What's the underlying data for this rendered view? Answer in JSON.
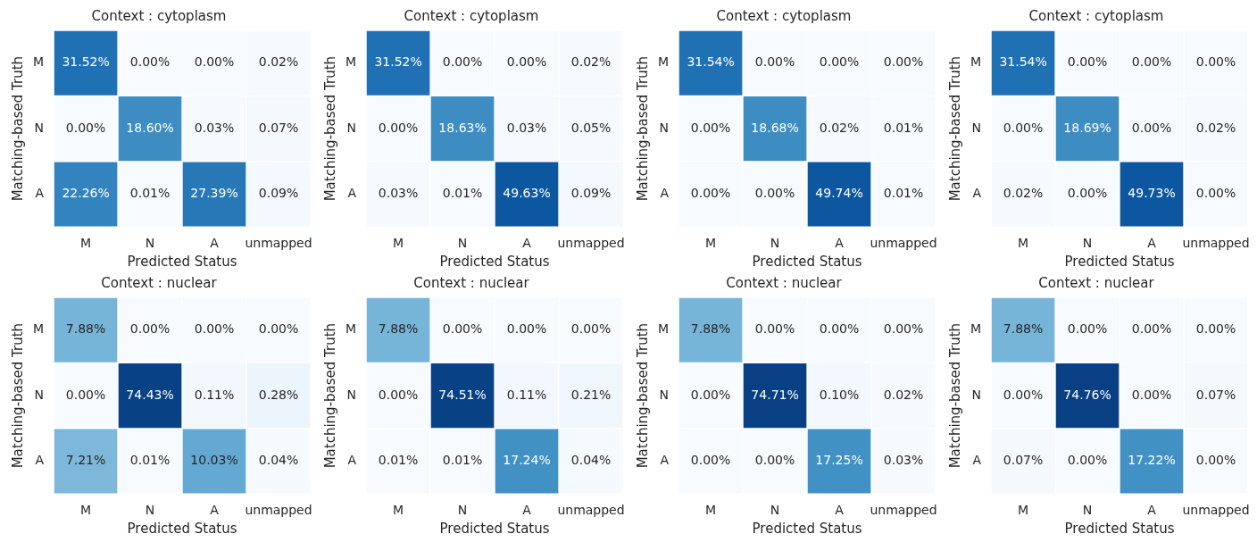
{
  "chart_data": [
    {
      "type": "heatmap",
      "title": "Context : cytoplasm",
      "xlabel": "Predicted Status",
      "ylabel": "Matching-based Truth",
      "categories": [
        "M",
        "N",
        "A",
        "unmapped"
      ],
      "y_categories": [
        "M",
        "N",
        "A"
      ],
      "cells": [
        [
          31.52,
          0.0,
          0.0,
          0.02
        ],
        [
          0.0,
          18.6,
          0.03,
          0.07
        ],
        [
          22.26,
          0.01,
          27.39,
          0.09
        ]
      ],
      "cell_labels": [
        [
          "31.52%",
          "0.00%",
          "0.00%",
          "0.02%"
        ],
        [
          "0.00%",
          "18.60%",
          "0.03%",
          "0.07%"
        ],
        [
          "22.26%",
          "0.01%",
          "27.39%",
          "0.09%"
        ]
      ]
    },
    {
      "type": "heatmap",
      "title": "Context : cytoplasm",
      "xlabel": "Predicted Status",
      "ylabel": "Matching-based Truth",
      "categories": [
        "M",
        "N",
        "A",
        "unmapped"
      ],
      "y_categories": [
        "M",
        "N",
        "A"
      ],
      "cells": [
        [
          31.52,
          0.0,
          0.0,
          0.02
        ],
        [
          0.0,
          18.63,
          0.03,
          0.05
        ],
        [
          0.03,
          0.01,
          49.63,
          0.09
        ]
      ],
      "cell_labels": [
        [
          "31.52%",
          "0.00%",
          "0.00%",
          "0.02%"
        ],
        [
          "0.00%",
          "18.63%",
          "0.03%",
          "0.05%"
        ],
        [
          "0.03%",
          "0.01%",
          "49.63%",
          "0.09%"
        ]
      ]
    },
    {
      "type": "heatmap",
      "title": "Context : cytoplasm",
      "xlabel": "Predicted Status",
      "ylabel": "Matching-based Truth",
      "categories": [
        "M",
        "N",
        "A",
        "unmapped"
      ],
      "y_categories": [
        "M",
        "N",
        "A"
      ],
      "cells": [
        [
          31.54,
          0.0,
          0.0,
          0.0
        ],
        [
          0.0,
          18.68,
          0.02,
          0.01
        ],
        [
          0.0,
          0.0,
          49.74,
          0.01
        ]
      ],
      "cell_labels": [
        [
          "31.54%",
          "0.00%",
          "0.00%",
          "0.00%"
        ],
        [
          "0.00%",
          "18.68%",
          "0.02%",
          "0.01%"
        ],
        [
          "0.00%",
          "0.00%",
          "49.74%",
          "0.01%"
        ]
      ]
    },
    {
      "type": "heatmap",
      "title": "Context : cytoplasm",
      "xlabel": "Predicted Status",
      "ylabel": "Matching-based Truth",
      "categories": [
        "M",
        "N",
        "A",
        "unmapped"
      ],
      "y_categories": [
        "M",
        "N",
        "A"
      ],
      "cells": [
        [
          31.54,
          0.0,
          0.0,
          0.0
        ],
        [
          0.0,
          18.69,
          0.0,
          0.02
        ],
        [
          0.02,
          0.0,
          49.73,
          0.0
        ]
      ],
      "cell_labels": [
        [
          "31.54%",
          "0.00%",
          "0.00%",
          "0.00%"
        ],
        [
          "0.00%",
          "18.69%",
          "0.00%",
          "0.02%"
        ],
        [
          "0.02%",
          "0.00%",
          "49.73%",
          "0.00%"
        ]
      ]
    },
    {
      "type": "heatmap",
      "title": "Context : nuclear",
      "xlabel": "Predicted Status",
      "ylabel": "Matching-based Truth",
      "categories": [
        "M",
        "N",
        "A",
        "unmapped"
      ],
      "y_categories": [
        "M",
        "N",
        "A"
      ],
      "cells": [
        [
          7.88,
          0.0,
          0.0,
          0.0
        ],
        [
          0.0,
          74.43,
          0.11,
          0.28
        ],
        [
          7.21,
          0.01,
          10.03,
          0.04
        ]
      ],
      "cell_labels": [
        [
          "7.88%",
          "0.00%",
          "0.00%",
          "0.00%"
        ],
        [
          "0.00%",
          "74.43%",
          "0.11%",
          "0.28%"
        ],
        [
          "7.21%",
          "0.01%",
          "10.03%",
          "0.04%"
        ]
      ]
    },
    {
      "type": "heatmap",
      "title": "Context : nuclear",
      "xlabel": "Predicted Status",
      "ylabel": "Matching-based Truth",
      "categories": [
        "M",
        "N",
        "A",
        "unmapped"
      ],
      "y_categories": [
        "M",
        "N",
        "A"
      ],
      "cells": [
        [
          7.88,
          0.0,
          0.0,
          0.0
        ],
        [
          0.0,
          74.51,
          0.11,
          0.21
        ],
        [
          0.01,
          0.01,
          17.24,
          0.04
        ]
      ],
      "cell_labels": [
        [
          "7.88%",
          "0.00%",
          "0.00%",
          "0.00%"
        ],
        [
          "0.00%",
          "74.51%",
          "0.11%",
          "0.21%"
        ],
        [
          "0.01%",
          "0.01%",
          "17.24%",
          "0.04%"
        ]
      ]
    },
    {
      "type": "heatmap",
      "title": "Context : nuclear",
      "xlabel": "Predicted Status",
      "ylabel": "Matching-based Truth",
      "categories": [
        "M",
        "N",
        "A",
        "unmapped"
      ],
      "y_categories": [
        "M",
        "N",
        "A"
      ],
      "cells": [
        [
          7.88,
          0.0,
          0.0,
          0.0
        ],
        [
          0.0,
          74.71,
          0.1,
          0.02
        ],
        [
          0.0,
          0.0,
          17.25,
          0.03
        ]
      ],
      "cell_labels": [
        [
          "7.88%",
          "0.00%",
          "0.00%",
          "0.00%"
        ],
        [
          "0.00%",
          "74.71%",
          "0.10%",
          "0.02%"
        ],
        [
          "0.00%",
          "0.00%",
          "17.25%",
          "0.03%"
        ]
      ]
    },
    {
      "type": "heatmap",
      "title": "Context : nuclear",
      "xlabel": "Predicted Status",
      "ylabel": "Matching-based Truth",
      "categories": [
        "M",
        "N",
        "A",
        "unmapped"
      ],
      "y_categories": [
        "M",
        "N",
        "A"
      ],
      "cells": [
        [
          7.88,
          0.0,
          0.0,
          0.0
        ],
        [
          0.0,
          74.76,
          0.0,
          0.07
        ],
        [
          0.07,
          0.0,
          17.22,
          0.0
        ]
      ],
      "cell_labels": [
        [
          "7.88%",
          "0.00%",
          "0.00%",
          "0.00%"
        ],
        [
          "0.00%",
          "74.76%",
          "0.00%",
          "0.07%"
        ],
        [
          "0.07%",
          "0.00%",
          "17.22%",
          "0.00%"
        ]
      ]
    }
  ]
}
